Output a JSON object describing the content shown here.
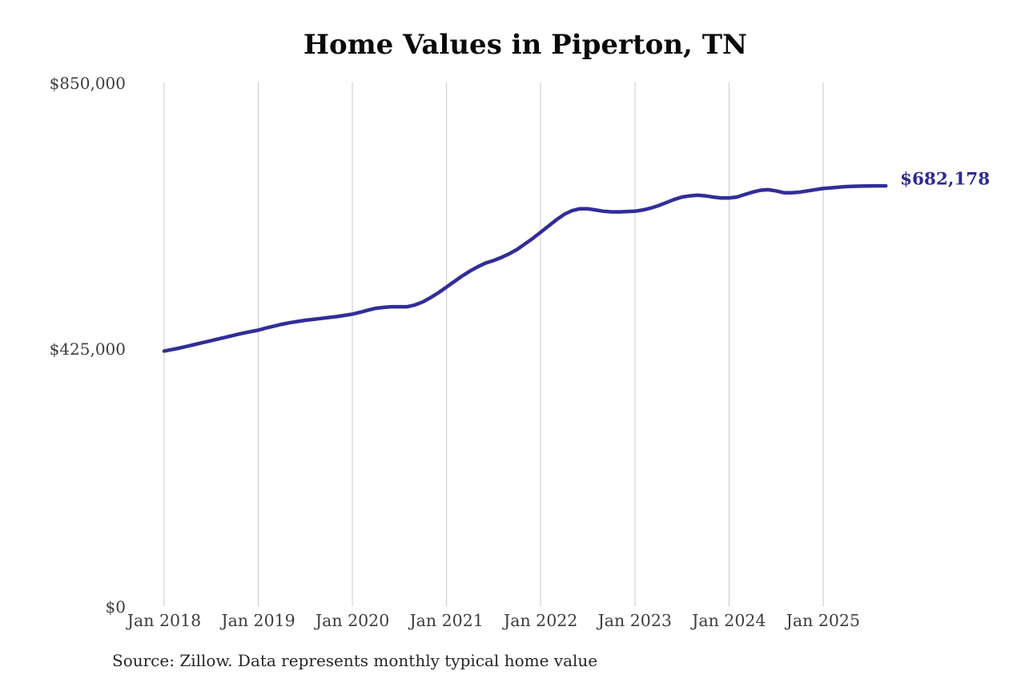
{
  "source_note": "Source: Zillow. Data represents monthly typical home value",
  "chart_data": {
    "type": "line",
    "title": "Home Values in Piperton, TN",
    "series_name": "Monthly typical home value (Piperton, TN)",
    "end_label": "$682,178",
    "end_value": 682178,
    "ylim": [
      0,
      850000
    ],
    "grid": "vertical-only",
    "legend": "none",
    "line_color": "#322d99",
    "end_label_color": "#2d2a92",
    "grid_color": "#c9c9c9",
    "y_tick_labels": [
      "$850,000",
      "$425,000",
      "$0"
    ],
    "x_tick_labels": [
      "Jan 2018",
      "Jan 2019",
      "Jan 2020",
      "Jan 2021",
      "Jan 2022",
      "Jan 2023",
      "Jan 2024",
      "Jan 2025"
    ],
    "x": [
      "2018-01",
      "2018-02",
      "2018-03",
      "2018-04",
      "2018-05",
      "2018-06",
      "2018-07",
      "2018-08",
      "2018-09",
      "2018-10",
      "2018-11",
      "2018-12",
      "2019-01",
      "2019-02",
      "2019-03",
      "2019-04",
      "2019-05",
      "2019-06",
      "2019-07",
      "2019-08",
      "2019-09",
      "2019-10",
      "2019-11",
      "2019-12",
      "2020-01",
      "2020-02",
      "2020-03",
      "2020-04",
      "2020-05",
      "2020-06",
      "2020-07",
      "2020-08",
      "2020-09",
      "2020-10",
      "2020-11",
      "2020-12",
      "2021-01",
      "2021-02",
      "2021-03",
      "2021-04",
      "2021-05",
      "2021-06",
      "2021-07",
      "2021-08",
      "2021-09",
      "2021-10",
      "2021-11",
      "2021-12",
      "2022-01",
      "2022-02",
      "2022-03",
      "2022-04",
      "2022-05",
      "2022-06",
      "2022-07",
      "2022-08",
      "2022-09",
      "2022-10",
      "2022-11",
      "2022-12",
      "2023-01",
      "2023-02",
      "2023-03",
      "2023-04",
      "2023-05",
      "2023-06",
      "2023-07",
      "2023-08",
      "2023-09",
      "2023-10",
      "2023-11",
      "2023-12",
      "2024-01",
      "2024-02",
      "2024-03",
      "2024-04",
      "2024-05",
      "2024-06",
      "2024-07",
      "2024-08",
      "2024-09",
      "2024-10",
      "2024-11",
      "2024-12",
      "2025-01",
      "2025-02",
      "2025-03",
      "2025-04",
      "2025-05",
      "2025-06",
      "2025-07",
      "2025-08",
      "2025-09"
    ],
    "values": [
      414000,
      416500,
      419000,
      422000,
      425000,
      428000,
      431000,
      434000,
      437000,
      440000,
      443000,
      445500,
      448000,
      451500,
      454500,
      457500,
      460000,
      462000,
      464000,
      465500,
      467000,
      468500,
      470000,
      472000,
      474000,
      477000,
      480500,
      483500,
      485000,
      486000,
      486000,
      486000,
      489000,
      494000,
      501000,
      509000,
      518000,
      527000,
      536000,
      544000,
      551000,
      557000,
      561000,
      566000,
      572000,
      579000,
      588000,
      597000,
      607000,
      617000,
      627000,
      636000,
      642000,
      645000,
      645000,
      643000,
      641000,
      640000,
      640000,
      640500,
      641000,
      643000,
      646000,
      650000,
      655000,
      660000,
      664000,
      666000,
      667000,
      666000,
      664000,
      662500,
      662500,
      664000,
      668000,
      672000,
      675000,
      676000,
      674000,
      671000,
      671000,
      672000,
      674000,
      676000,
      678000,
      679000,
      680000,
      681000,
      681500,
      681800,
      682000,
      682100,
      682178
    ]
  }
}
